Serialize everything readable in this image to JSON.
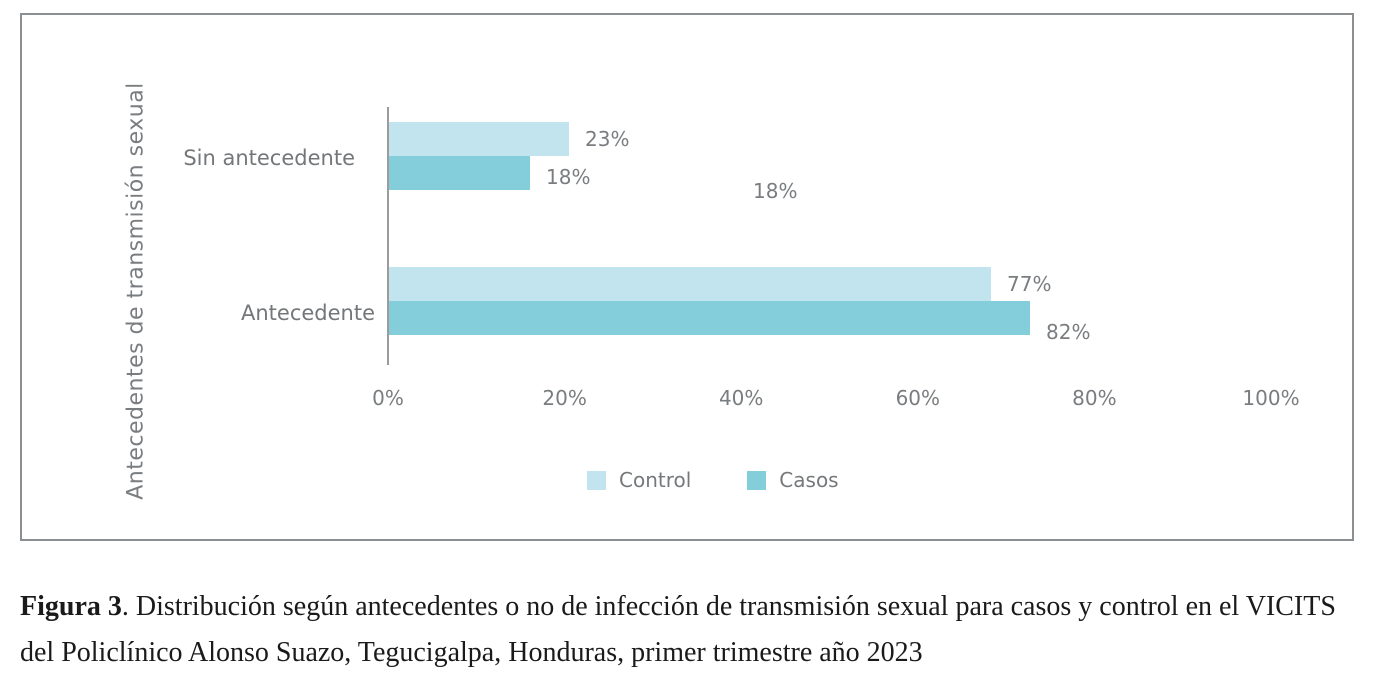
{
  "figure": {
    "caption": {
      "label": "Figura 3",
      "text": ". Distribución según antecedentes o no de infección de transmisión sexual para casos y control en el VICITS del Policlínico Alonso Suazo, Tegucigalpa, Honduras, primer trimestre año 2023"
    }
  },
  "chart_data": {
    "type": "bar",
    "orientation": "horizontal",
    "title": "",
    "xlabel": "",
    "ylabel": "Antecedentes de transmisión sexual",
    "categories": [
      "Sin antecedente",
      "Antecedente"
    ],
    "series": [
      {
        "name": "Control",
        "color": "#C1E4EE",
        "values": [
          23,
          77
        ],
        "labels": [
          "23%",
          "77%"
        ]
      },
      {
        "name": "Casos",
        "color": "#84CEDC",
        "values": [
          18,
          82
        ],
        "labels": [
          "18%",
          "82%"
        ]
      }
    ],
    "stray_label": "18%",
    "x_axis": {
      "ticks": [
        "0%",
        "20%",
        "40%",
        "60%",
        "80%",
        "100%"
      ],
      "min": 0,
      "max": 100,
      "grid": false
    },
    "legend": {
      "position": "bottom",
      "entries": [
        "Control",
        "Casos"
      ]
    },
    "colors": {
      "control": "#C1E4EE",
      "casos": "#84CEDC",
      "text_gray": "#7a7d80",
      "axis_line": "#9b9b9b",
      "frame_border": "#8c8f91"
    }
  }
}
